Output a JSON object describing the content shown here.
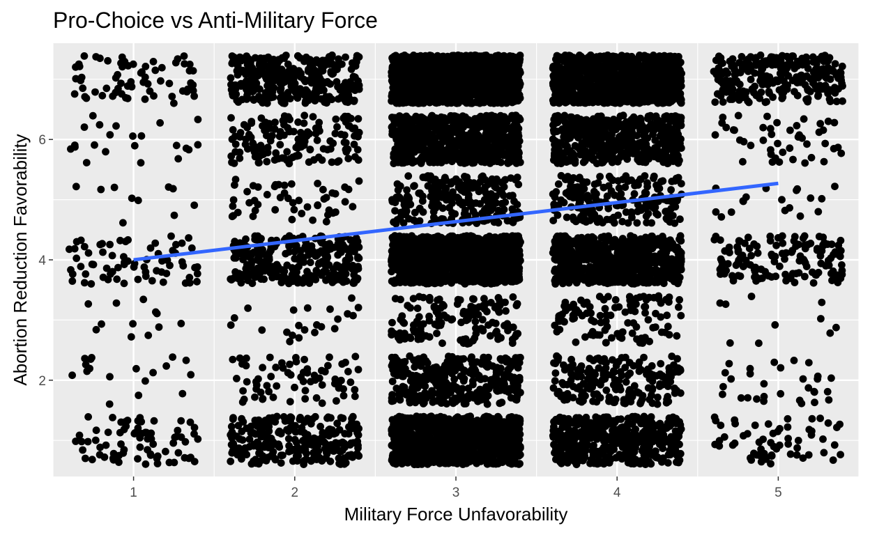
{
  "chart_data": {
    "type": "scatter",
    "title": "Pro-Choice vs Anti-Military Force",
    "xlabel": "Military Force Unfavorability",
    "ylabel": "Abortion Reduction Favorability",
    "xlim": [
      0.5,
      5.5
    ],
    "ylim": [
      0.4,
      7.6
    ],
    "x_ticks": [
      1,
      2,
      3,
      4,
      5
    ],
    "y_ticks": [
      2,
      4,
      6
    ],
    "x_tick_labels": [
      "1",
      "2",
      "3",
      "4",
      "5"
    ],
    "y_tick_labels": [
      "2",
      "4",
      "6"
    ],
    "grid": true,
    "jitter": {
      "x": 0.4,
      "y": 0.4
    },
    "panel_color": "#ebebeb",
    "grid_color": "#ffffff",
    "point_color": "#000000",
    "trend_color": "#3366ff",
    "trend_line": {
      "x": [
        1,
        5
      ],
      "y": [
        4.0,
        5.27
      ]
    },
    "counts": [
      {
        "x": 1,
        "y": 1,
        "n": 75
      },
      {
        "x": 1,
        "y": 2,
        "n": 18
      },
      {
        "x": 1,
        "y": 3,
        "n": 12
      },
      {
        "x": 1,
        "y": 4,
        "n": 70
      },
      {
        "x": 1,
        "y": 5,
        "n": 10
      },
      {
        "x": 1,
        "y": 6,
        "n": 22
      },
      {
        "x": 1,
        "y": 7,
        "n": 65
      },
      {
        "x": 2,
        "y": 1,
        "n": 260
      },
      {
        "x": 2,
        "y": 2,
        "n": 70
      },
      {
        "x": 2,
        "y": 3,
        "n": 22
      },
      {
        "x": 2,
        "y": 4,
        "n": 280
      },
      {
        "x": 2,
        "y": 5,
        "n": 50
      },
      {
        "x": 2,
        "y": 6,
        "n": 150
      },
      {
        "x": 2,
        "y": 7,
        "n": 330
      },
      {
        "x": 3,
        "y": 1,
        "n": 1000
      },
      {
        "x": 3,
        "y": 2,
        "n": 320
      },
      {
        "x": 3,
        "y": 3,
        "n": 140
      },
      {
        "x": 3,
        "y": 4,
        "n": 1100
      },
      {
        "x": 3,
        "y": 5,
        "n": 240
      },
      {
        "x": 3,
        "y": 6,
        "n": 650
      },
      {
        "x": 3,
        "y": 7,
        "n": 1300
      },
      {
        "x": 4,
        "y": 1,
        "n": 450
      },
      {
        "x": 4,
        "y": 2,
        "n": 190
      },
      {
        "x": 4,
        "y": 3,
        "n": 110
      },
      {
        "x": 4,
        "y": 4,
        "n": 700
      },
      {
        "x": 4,
        "y": 5,
        "n": 200
      },
      {
        "x": 4,
        "y": 6,
        "n": 500
      },
      {
        "x": 4,
        "y": 7,
        "n": 1000
      },
      {
        "x": 5,
        "y": 1,
        "n": 60
      },
      {
        "x": 5,
        "y": 2,
        "n": 30
      },
      {
        "x": 5,
        "y": 3,
        "n": 10
      },
      {
        "x": 5,
        "y": 4,
        "n": 140
      },
      {
        "x": 5,
        "y": 5,
        "n": 18
      },
      {
        "x": 5,
        "y": 6,
        "n": 45
      },
      {
        "x": 5,
        "y": 7,
        "n": 250
      }
    ]
  }
}
